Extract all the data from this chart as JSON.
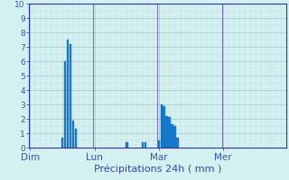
{
  "xlabel": "Précipitations 24h ( mm )",
  "background_color": "#d4f0f0",
  "bar_color_main": "#1a7fd4",
  "bar_color_edge": "#0a4a8a",
  "ylim": [
    0,
    10
  ],
  "yticks": [
    0,
    1,
    2,
    3,
    4,
    5,
    6,
    7,
    8,
    9,
    10
  ],
  "day_labels": [
    "Dim",
    "Lun",
    "Mar",
    "Mer"
  ],
  "day_positions": [
    0,
    24,
    48,
    72
  ],
  "total_bars": 96,
  "bars": [
    0.0,
    0.0,
    0.0,
    0.0,
    0.0,
    0.0,
    0.0,
    0.0,
    0.0,
    0.0,
    0.0,
    0.0,
    0.7,
    6.0,
    7.5,
    7.2,
    1.9,
    1.3,
    0.0,
    0.0,
    0.0,
    0.0,
    0.0,
    0.0,
    0.0,
    0.0,
    0.0,
    0.0,
    0.0,
    0.0,
    0.0,
    0.0,
    0.0,
    0.0,
    0.0,
    0.0,
    0.35,
    0.0,
    0.0,
    0.0,
    0.0,
    0.0,
    0.35,
    0.4,
    0.0,
    0.0,
    0.0,
    0.0,
    0.5,
    3.0,
    2.9,
    2.2,
    2.1,
    1.6,
    1.5,
    0.7,
    0.0,
    0.0,
    0.0,
    0.0,
    0.0,
    0.0,
    0.0,
    0.0,
    0.0,
    0.0,
    0.0,
    0.0,
    0.0,
    0.0,
    0.0,
    0.0,
    0.0,
    0.0,
    0.0,
    0.0,
    0.0,
    0.0,
    0.0,
    0.0,
    0.0,
    0.0,
    0.0,
    0.0,
    0.0,
    0.0,
    0.0,
    0.0,
    0.0,
    0.0,
    0.0,
    0.0,
    0.0,
    0.0,
    0.0,
    0.0
  ],
  "grid_color": "#aacccc",
  "grid_minor_color": "#c4dcdc",
  "vline_color": "#7777aa",
  "axis_label_color": "#3333aa",
  "tick_label_color": "#3355aa",
  "xlabel_color": "#3344bb",
  "ytick_fontsize": 6.5,
  "xtick_fontsize": 7.5,
  "xlabel_fontsize": 8
}
